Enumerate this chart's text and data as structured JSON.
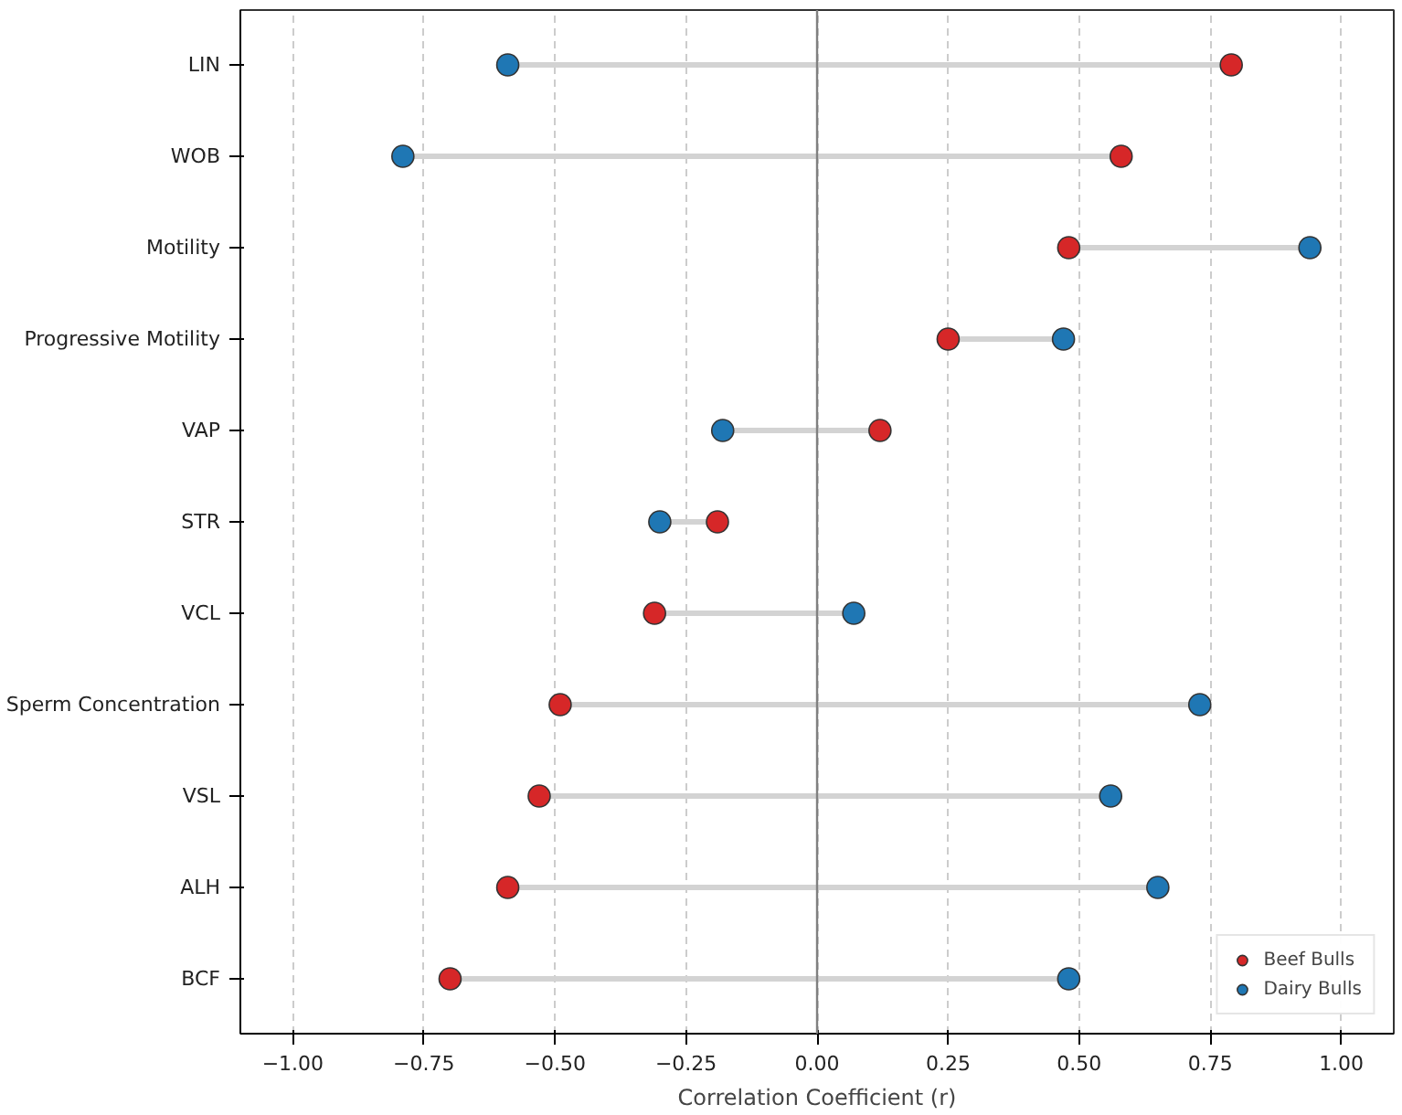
{
  "chart_data": {
    "type": "scatter",
    "orientation": "horizontal",
    "xlabel": "Correlation Coefficient (r)",
    "categories": [
      "LIN",
      "WOB",
      "Motility",
      "Progressive Motility",
      "VAP",
      "STR",
      "VCL",
      "Sperm Concentration",
      "VSL",
      "ALH",
      "BCF"
    ],
    "series": [
      {
        "name": "Beef Bulls",
        "color": "#d62728",
        "values": [
          0.79,
          0.58,
          0.48,
          0.25,
          0.12,
          -0.19,
          -0.31,
          -0.49,
          -0.53,
          -0.59,
          -0.7
        ]
      },
      {
        "name": "Dairy Bulls",
        "color": "#1f77b4",
        "values": [
          -0.59,
          -0.79,
          0.94,
          0.47,
          -0.18,
          -0.3,
          0.07,
          0.73,
          0.56,
          0.65,
          0.48
        ]
      }
    ],
    "xlim": [
      -1.1,
      1.1
    ],
    "xticks": [
      {
        "value": -1,
        "label": "−1.00"
      },
      {
        "value": -0.75,
        "label": "−0.75"
      },
      {
        "value": -0.5,
        "label": "−0.50"
      },
      {
        "value": -0.25,
        "label": "−0.25"
      },
      {
        "value": 0,
        "label": "0.00"
      },
      {
        "value": 0.25,
        "label": "0.25"
      },
      {
        "value": 0.5,
        "label": "0.50"
      },
      {
        "value": 0.75,
        "label": "0.75"
      },
      {
        "value": 1,
        "label": "1.00"
      }
    ],
    "ref_lines": [
      {
        "axis": "x",
        "value": 0,
        "label": null,
        "color": "#808080"
      }
    ],
    "grid": "x",
    "legend": "bottom right",
    "marker": "circle"
  }
}
